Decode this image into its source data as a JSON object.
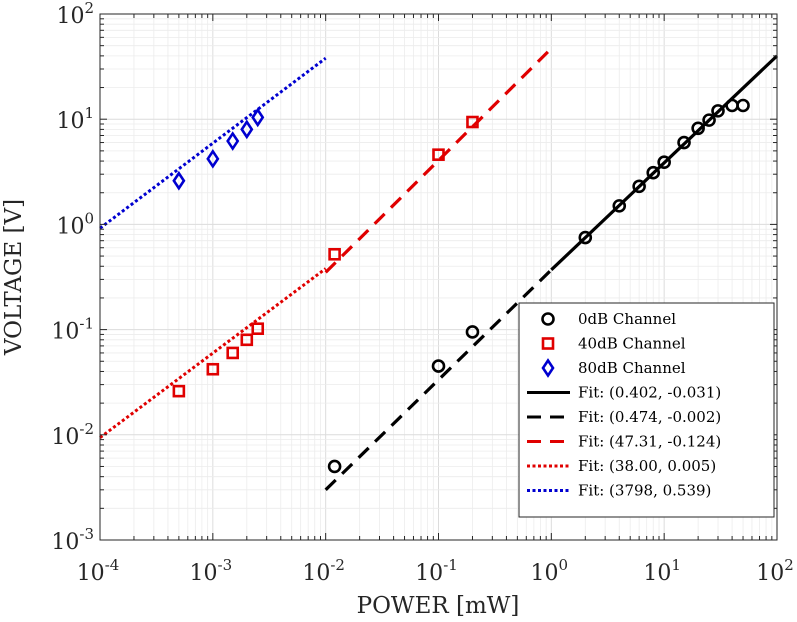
{
  "chart_data": {
    "type": "scatter",
    "xscale": "log",
    "yscale": "log",
    "xlim": [
      0.0001,
      100
    ],
    "ylim": [
      0.001,
      100
    ],
    "xlabel": "POWER [mW]",
    "ylabel": "VOLTAGE [V]",
    "grid": true,
    "legend_location": "lower-right",
    "x_ticks": [
      {
        "value": 0.0001,
        "base": "10",
        "exp": "-4"
      },
      {
        "value": 0.001,
        "base": "10",
        "exp": "-3"
      },
      {
        "value": 0.01,
        "base": "10",
        "exp": "-2"
      },
      {
        "value": 0.1,
        "base": "10",
        "exp": "-1"
      },
      {
        "value": 1,
        "base": "10",
        "exp": "0"
      },
      {
        "value": 10,
        "base": "10",
        "exp": "1"
      },
      {
        "value": 100,
        "base": "10",
        "exp": "2"
      }
    ],
    "y_ticks": [
      {
        "value": 0.001,
        "base": "10",
        "exp": "-3"
      },
      {
        "value": 0.01,
        "base": "10",
        "exp": "-2"
      },
      {
        "value": 0.1,
        "base": "10",
        "exp": "-1"
      },
      {
        "value": 1,
        "base": "10",
        "exp": "0"
      },
      {
        "value": 10,
        "base": "10",
        "exp": "1"
      },
      {
        "value": 100,
        "base": "10",
        "exp": "2"
      }
    ],
    "scatter_series": [
      {
        "name": "0dB Channel",
        "marker": "circle",
        "color": "#000000",
        "points": [
          [
            0.012,
            0.005
          ],
          [
            0.1,
            0.045
          ],
          [
            0.2,
            0.095
          ],
          [
            2,
            0.75
          ],
          [
            4,
            1.5
          ],
          [
            6,
            2.3
          ],
          [
            8,
            3.1
          ],
          [
            10,
            3.9
          ],
          [
            15,
            6.0
          ],
          [
            20,
            8.2
          ],
          [
            25,
            9.8
          ],
          [
            30,
            12
          ],
          [
            40,
            13.5
          ],
          [
            50,
            13.5
          ]
        ]
      },
      {
        "name": "40dB Channel",
        "marker": "square",
        "color": "#e00000",
        "points": [
          [
            0.0005,
            0.026
          ],
          [
            0.001,
            0.042
          ],
          [
            0.0015,
            0.06
          ],
          [
            0.002,
            0.08
          ],
          [
            0.0025,
            0.102
          ],
          [
            0.012,
            0.52
          ],
          [
            0.1,
            4.6
          ],
          [
            0.2,
            9.4
          ]
        ]
      },
      {
        "name": "80dB Channel",
        "marker": "diamond",
        "color": "#0000d0",
        "points": [
          [
            0.0005,
            2.6
          ],
          [
            0.001,
            4.2
          ],
          [
            0.0015,
            6.2
          ],
          [
            0.002,
            8.0
          ],
          [
            0.0025,
            10.4
          ]
        ]
      }
    ],
    "fit_series": [
      {
        "name": "Fit: (0.402, -0.031)",
        "color": "#000000",
        "style": "solid",
        "x_start": 1,
        "x_end": 100,
        "y_start": 0.37,
        "y_end": 40
      },
      {
        "name": "Fit: (0.474, -0.002)",
        "color": "#000000",
        "style": "dashed",
        "x_start": 0.01,
        "x_end": 1,
        "y_start": 0.003,
        "y_end": 0.37
      },
      {
        "name": "Fit: (47.31, -0.124)",
        "color": "#e00000",
        "style": "dashed",
        "x_start": 0.01,
        "x_end": 1,
        "y_start": 0.35,
        "y_end": 47
      },
      {
        "name": "Fit: (38.00, 0.005)",
        "color": "#e00000",
        "style": "dotted",
        "x_start": 0.0001,
        "x_end": 0.01,
        "y_start": 0.0094,
        "y_end": 0.38
      },
      {
        "name": "Fit: (3798, 0.539)",
        "color": "#0000d0",
        "style": "dotted",
        "x_start": 0.0001,
        "x_end": 0.01,
        "y_start": 0.92,
        "y_end": 38
      }
    ],
    "legend": [
      {
        "label": "0dB Channel",
        "kind": "marker",
        "marker": "circle",
        "color": "#000000"
      },
      {
        "label": "40dB Channel",
        "kind": "marker",
        "marker": "square",
        "color": "#e00000"
      },
      {
        "label": "80dB Channel",
        "kind": "marker",
        "marker": "diamond",
        "color": "#0000d0"
      },
      {
        "label": "Fit: (0.402, -0.031)",
        "kind": "line",
        "style": "solid",
        "color": "#000000"
      },
      {
        "label": "Fit: (0.474, -0.002)",
        "kind": "line",
        "style": "dashed",
        "color": "#000000"
      },
      {
        "label": "Fit: (47.31, -0.124)",
        "kind": "line",
        "style": "dashed",
        "color": "#e00000"
      },
      {
        "label": "Fit: (38.00, 0.005)",
        "kind": "line",
        "style": "dotted",
        "color": "#e00000"
      },
      {
        "label": "Fit: (3798, 0.539)",
        "kind": "line",
        "style": "dotted",
        "color": "#0000d0"
      }
    ]
  }
}
